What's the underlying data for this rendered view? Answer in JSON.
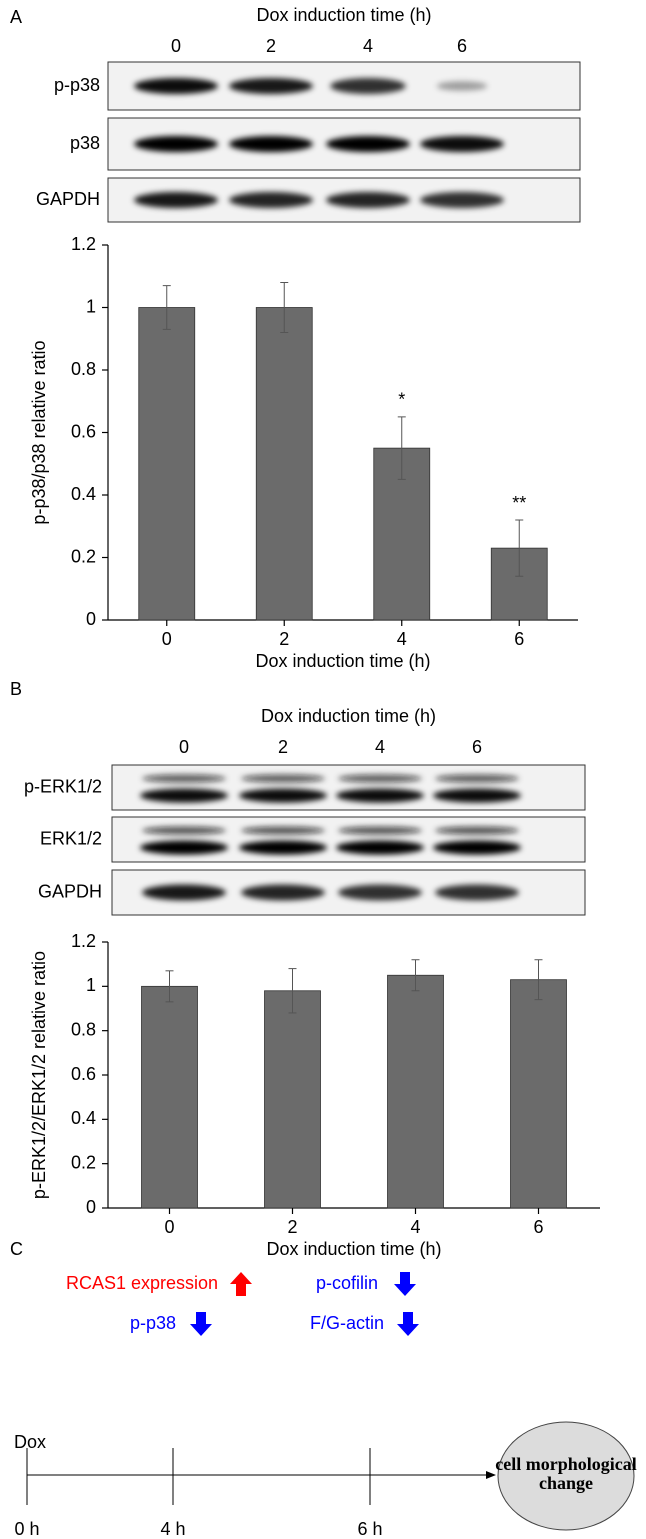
{
  "panels": {
    "a": "A",
    "b": "B",
    "c": "C"
  },
  "blots": [
    {
      "title": "Dox induction time (h)",
      "lanes": [
        "0",
        "2",
        "4",
        "6"
      ],
      "rows": [
        "p-p38",
        "p38",
        "GAPDH"
      ]
    },
    {
      "title": "Dox induction time (h)",
      "lanes": [
        "0",
        "2",
        "4",
        "6"
      ],
      "rows": [
        "p-ERK1/2",
        "ERK1/2",
        "GAPDH"
      ]
    }
  ],
  "chart_data": [
    {
      "type": "bar",
      "xlabel": "Dox induction time (h)",
      "ylabel": "p-p38/p38 relative ratio",
      "categories": [
        "0",
        "2",
        "4",
        "6"
      ],
      "values": [
        1.0,
        1.0,
        0.55,
        0.23
      ],
      "errors": [
        0.07,
        0.08,
        0.1,
        0.09
      ],
      "annotations": [
        null,
        null,
        "*",
        "**"
      ],
      "color": "#6b6b6b",
      "ylim": [
        0,
        1.2
      ],
      "yticks": [
        0,
        0.2,
        0.4,
        0.6,
        0.8,
        1,
        1.2
      ]
    },
    {
      "type": "bar",
      "xlabel": "Dox induction time (h)",
      "ylabel": "p-ERK1/2/ERK1/2 relative ratio",
      "categories": [
        "0",
        "2",
        "4",
        "6"
      ],
      "values": [
        1.0,
        0.98,
        1.05,
        1.03
      ],
      "errors": [
        0.07,
        0.1,
        0.07,
        0.09
      ],
      "color": "#6b6b6b",
      "ylim": [
        0,
        1.2
      ],
      "yticks": [
        0,
        0.2,
        0.4,
        0.6,
        0.8,
        1,
        1.2
      ]
    }
  ],
  "diagram": {
    "start": "Dox",
    "rcas1": "RCAS1 expression",
    "pp38": "p-p38",
    "pcofilin": "p-cofilin",
    "actin": "F/G-actin",
    "times": [
      "0 h",
      "4 h",
      "6 h"
    ],
    "outcome": [
      "cell morphological",
      "change"
    ]
  }
}
